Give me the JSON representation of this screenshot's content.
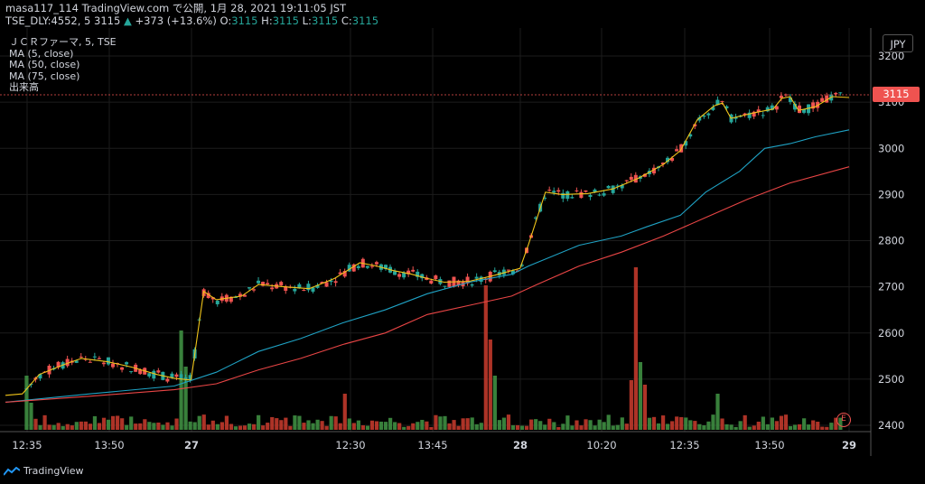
{
  "header": {
    "line1": "masa117_114 TradingView.com で公開, 1月 28, 2021 19:11:05 JST",
    "symbol": "TSE_DLY:4552, 5",
    "last": "3115",
    "change_arrow": "▲",
    "change": "+373 (+13.6%)",
    "o_label": "O:",
    "o_val": "3115",
    "h_label": "H:",
    "h_val": "3115",
    "l_label": "L:",
    "l_val": "3115",
    "c_label": "C:",
    "c_val": "3115"
  },
  "legend": {
    "title": "ＪＣＲファーマ, 5, TSE",
    "ma5": "MA (5, close)",
    "ma50": "MA (50, close)",
    "ma75": "MA (75, close)",
    "volume": "出来高"
  },
  "currency_button": "JPY",
  "price_tag": "3115",
  "earnings_marker": "E",
  "footer": {
    "brand": "TradingView"
  },
  "colors": {
    "up": "#26a69a",
    "down": "#ef5350",
    "ma5": "#f0c419",
    "ma50": "#1fa2c4",
    "ma75": "#e84545",
    "grid": "#1c1c1c"
  },
  "chart_data": {
    "type": "candlestick",
    "title": "ＪＣＲファーマ, 5, TSE",
    "y_ticks": [
      "3200",
      "3100",
      "3000",
      "2900",
      "2800",
      "2700",
      "2600",
      "2500",
      "2400"
    ],
    "ylim": [
      2380,
      3230
    ],
    "x_tick_labels": [
      "12:35",
      "13:50",
      "27",
      "12:30",
      "13:45",
      "28",
      "10:20",
      "12:35",
      "13:50",
      "29"
    ],
    "x_tick_bold": [
      false,
      false,
      true,
      false,
      false,
      true,
      false,
      false,
      false,
      true
    ],
    "last_price": 3115,
    "series": [
      {
        "name": "MA (5, close)",
        "color": "#f0c419",
        "points": [
          [
            0,
            2465
          ],
          [
            0.02,
            2468
          ],
          [
            0.04,
            2510
          ],
          [
            0.07,
            2532
          ],
          [
            0.09,
            2545
          ],
          [
            0.12,
            2538
          ],
          [
            0.15,
            2526
          ],
          [
            0.18,
            2510
          ],
          [
            0.2,
            2502
          ],
          [
            0.22,
            2498
          ],
          [
            0.235,
            2690
          ],
          [
            0.25,
            2672
          ],
          [
            0.28,
            2680
          ],
          [
            0.3,
            2705
          ],
          [
            0.33,
            2700
          ],
          [
            0.36,
            2696
          ],
          [
            0.39,
            2718
          ],
          [
            0.42,
            2752
          ],
          [
            0.44,
            2745
          ],
          [
            0.46,
            2735
          ],
          [
            0.48,
            2728
          ],
          [
            0.5,
            2718
          ],
          [
            0.52,
            2710
          ],
          [
            0.55,
            2712
          ],
          [
            0.58,
            2725
          ],
          [
            0.61,
            2740
          ],
          [
            0.62,
            2792
          ],
          [
            0.64,
            2905
          ],
          [
            0.66,
            2900
          ],
          [
            0.69,
            2902
          ],
          [
            0.72,
            2912
          ],
          [
            0.75,
            2935
          ],
          [
            0.78,
            2965
          ],
          [
            0.8,
            2995
          ],
          [
            0.82,
            3062
          ],
          [
            0.84,
            3092
          ],
          [
            0.85,
            3098
          ],
          [
            0.86,
            3065
          ],
          [
            0.89,
            3078
          ],
          [
            0.91,
            3085
          ],
          [
            0.92,
            3108
          ],
          [
            0.93,
            3112
          ],
          [
            0.94,
            3082
          ],
          [
            0.96,
            3090
          ],
          [
            0.98,
            3112
          ],
          [
            1.0,
            3110
          ]
        ]
      },
      {
        "name": "MA (50, close)",
        "color": "#1fa2c4",
        "points": [
          [
            0,
            2450
          ],
          [
            0.1,
            2468
          ],
          [
            0.2,
            2485
          ],
          [
            0.25,
            2515
          ],
          [
            0.3,
            2560
          ],
          [
            0.35,
            2588
          ],
          [
            0.4,
            2622
          ],
          [
            0.45,
            2650
          ],
          [
            0.5,
            2685
          ],
          [
            0.55,
            2710
          ],
          [
            0.6,
            2727
          ],
          [
            0.62,
            2745
          ],
          [
            0.68,
            2790
          ],
          [
            0.73,
            2810
          ],
          [
            0.76,
            2830
          ],
          [
            0.8,
            2855
          ],
          [
            0.83,
            2905
          ],
          [
            0.87,
            2950
          ],
          [
            0.9,
            3000
          ],
          [
            0.93,
            3010
          ],
          [
            0.96,
            3025
          ],
          [
            1.0,
            3040
          ]
        ]
      },
      {
        "name": "MA (75, close)",
        "color": "#e84545",
        "points": [
          [
            0,
            2450
          ],
          [
            0.1,
            2463
          ],
          [
            0.2,
            2477
          ],
          [
            0.25,
            2490
          ],
          [
            0.3,
            2520
          ],
          [
            0.35,
            2545
          ],
          [
            0.4,
            2575
          ],
          [
            0.45,
            2600
          ],
          [
            0.5,
            2640
          ],
          [
            0.55,
            2660
          ],
          [
            0.6,
            2680
          ],
          [
            0.63,
            2705
          ],
          [
            0.68,
            2745
          ],
          [
            0.73,
            2775
          ],
          [
            0.78,
            2810
          ],
          [
            0.83,
            2850
          ],
          [
            0.88,
            2890
          ],
          [
            0.93,
            2925
          ],
          [
            1.0,
            2960
          ]
        ]
      }
    ]
  }
}
